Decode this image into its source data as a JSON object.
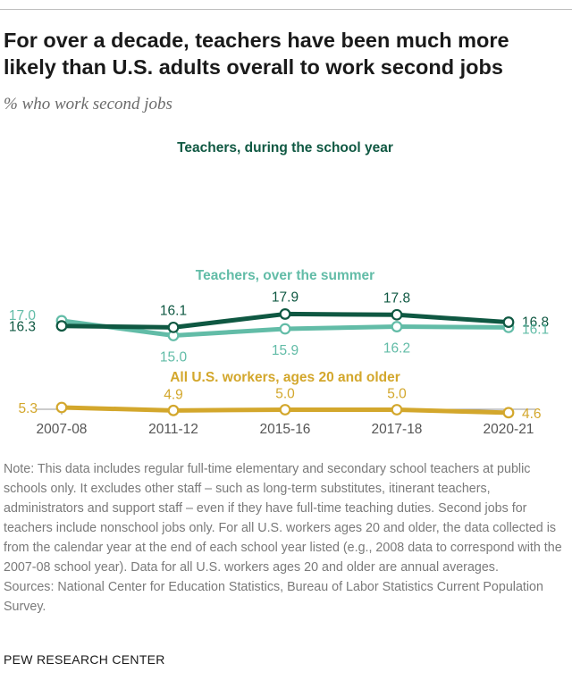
{
  "header": {
    "title": "For over a decade, teachers have been much more likely than U.S. adults overall to work second jobs",
    "subtitle": "% who work second jobs"
  },
  "chart_data": {
    "type": "line",
    "categories": [
      "2007-08",
      "2011-12",
      "2015-16",
      "2017-18",
      "2020-21"
    ],
    "series": [
      {
        "name": "Teachers, during the school year",
        "color": "#0f5842",
        "values": [
          16.3,
          16.1,
          17.9,
          17.8,
          16.8
        ],
        "labels": [
          "16.3",
          "16.1",
          "17.9",
          "17.8",
          "16.8"
        ]
      },
      {
        "name": "Teachers, over the summer",
        "color": "#62bca7",
        "values": [
          17.0,
          15.0,
          15.9,
          16.2,
          16.1
        ],
        "labels": [
          "17.0",
          "15.0",
          "15.9",
          "16.2",
          "16.1"
        ]
      },
      {
        "name": "All U.S. workers, ages 20 and older",
        "color": "#d3a72c",
        "values": [
          5.3,
          4.9,
          5.0,
          5.0,
          4.6
        ],
        "labels": [
          "5.3",
          "4.9",
          "5.0",
          "5.0",
          "4.6"
        ]
      }
    ],
    "xlabel": "",
    "ylabel": "",
    "grid": false
  },
  "note": {
    "text": "Note: This data includes regular full-time elementary and secondary school teachers at public schools only. It excludes other staff – such as long-term substitutes, itinerant teachers, administrators and support staff – even if they have full-time teaching duties. Second jobs for teachers include nonschool jobs only. For all U.S. workers ages 20 and older, the data collected is from the calendar year at the end of each school year listed (e.g., 2008 data to correspond with the 2007-08 school year). Data for all U.S. workers ages 20 and older are annual averages.",
    "sources": "Sources: National Center for Education Statistics, Bureau of Labor Statistics Current Population Survey."
  },
  "footer": {
    "brand": "PEW RESEARCH CENTER"
  }
}
